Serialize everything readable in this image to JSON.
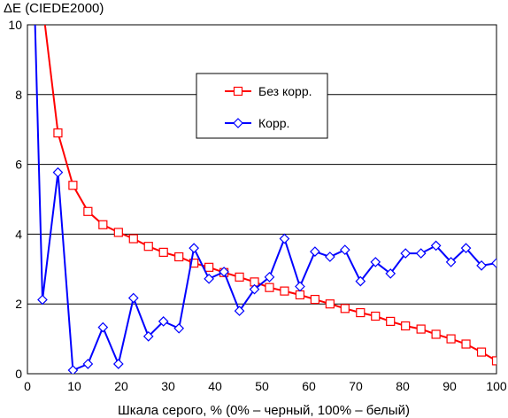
{
  "chart_data": {
    "type": "line",
    "title": "",
    "ylabel": "ΔE (CIEDE2000)",
    "xlabel": "Шкала серого, % (0% – черный, 100% – белый)",
    "xlim": [
      0,
      100
    ],
    "ylim": [
      0,
      10
    ],
    "x_ticks": [
      0,
      10,
      20,
      30,
      40,
      50,
      60,
      70,
      80,
      90,
      100
    ],
    "y_ticks": [
      0,
      2,
      4,
      6,
      8,
      10
    ],
    "grid": "horizontal",
    "legend_position": "upper-center",
    "series": [
      {
        "name": "Без корр.",
        "color": "#ff0000",
        "marker": "square",
        "x": [
          3.2,
          6.5,
          9.7,
          12.9,
          16.1,
          19.4,
          22.6,
          25.8,
          29.0,
          32.3,
          35.5,
          38.7,
          41.9,
          45.2,
          48.4,
          51.6,
          54.8,
          58.1,
          61.3,
          64.5,
          67.7,
          71.0,
          74.2,
          77.4,
          80.6,
          83.9,
          87.1,
          90.3,
          93.5,
          96.8,
          100.0
        ],
        "y": [
          10.6,
          6.9,
          5.4,
          4.65,
          4.27,
          4.05,
          3.87,
          3.65,
          3.48,
          3.35,
          3.17,
          3.05,
          2.9,
          2.77,
          2.63,
          2.47,
          2.37,
          2.26,
          2.13,
          2.0,
          1.87,
          1.75,
          1.65,
          1.5,
          1.37,
          1.28,
          1.13,
          1.0,
          0.85,
          0.62,
          0.37
        ]
      },
      {
        "name": "Корр.",
        "color": "#0000ff",
        "marker": "diamond",
        "x": [
          3.2,
          6.5,
          9.7,
          12.9,
          16.1,
          19.4,
          22.6,
          25.8,
          29.0,
          32.3,
          35.5,
          38.7,
          41.9,
          45.2,
          48.4,
          51.6,
          54.8,
          58.1,
          61.3,
          64.5,
          67.7,
          71.0,
          74.2,
          77.4,
          80.6,
          83.9,
          87.1,
          90.3,
          93.5,
          96.8,
          100.0
        ],
        "y": [
          2.12,
          5.77,
          0.1,
          0.28,
          1.33,
          0.28,
          2.17,
          1.07,
          1.5,
          1.3,
          3.6,
          2.72,
          2.92,
          1.8,
          2.42,
          2.77,
          3.87,
          2.5,
          3.5,
          3.35,
          3.55,
          2.65,
          3.2,
          2.87,
          3.45,
          3.45,
          3.67,
          3.2,
          3.6,
          3.1,
          3.17
        ]
      }
    ]
  }
}
